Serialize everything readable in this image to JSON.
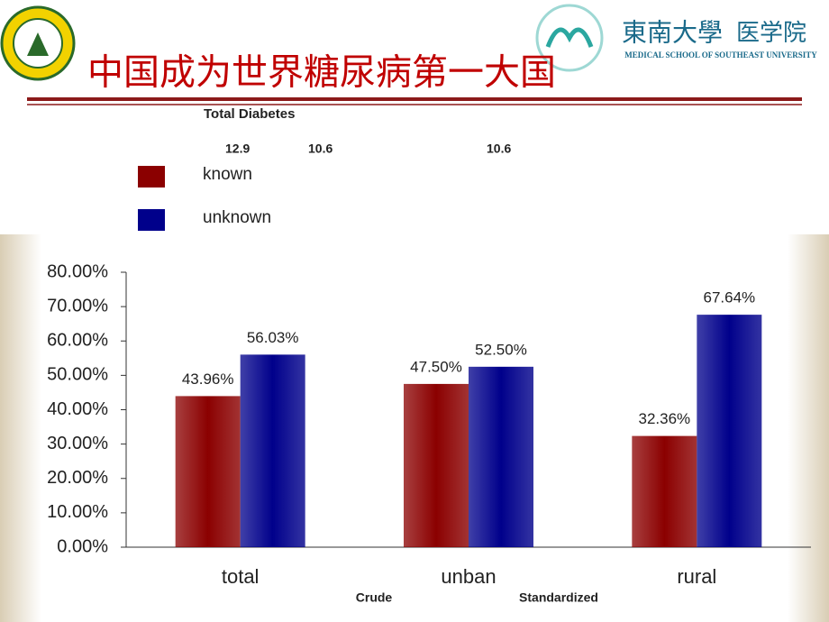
{
  "header": {
    "title": "中国成为世界糖尿病第一大国",
    "school_cn": "東南大學",
    "school_dept": "医学院",
    "school_en": "MEDICAL SCHOOL OF SOUTHEAST UNIVERSITY"
  },
  "chart_data": {
    "type": "bar",
    "title": "Total Diabetes",
    "annotations": [
      "12.9",
      "10.6",
      "10.6",
      "Crude",
      "Standardized"
    ],
    "categories": [
      "total",
      "unban",
      "rural"
    ],
    "series": [
      {
        "name": "known",
        "color": "#8b0000",
        "values": [
          43.96,
          47.5,
          32.36
        ],
        "value_labels": [
          "43.96%",
          "47.50%",
          "32.36%"
        ]
      },
      {
        "name": "unknown",
        "color": "#00008b",
        "values": [
          56.03,
          52.5,
          67.64
        ],
        "value_labels": [
          "56.03%",
          "52.50%",
          "67.64%"
        ]
      }
    ],
    "ylim": [
      0,
      80
    ],
    "yticks": [
      {
        "value": 0,
        "label": "0.00%"
      },
      {
        "value": 10,
        "label": "10.00%"
      },
      {
        "value": 20,
        "label": "20.00%"
      },
      {
        "value": 30,
        "label": "30.00%"
      },
      {
        "value": 40,
        "label": "40.00%"
      },
      {
        "value": 50,
        "label": "50.00%"
      },
      {
        "value": 60,
        "label": "60.00%"
      },
      {
        "value": 70,
        "label": "70.00%"
      },
      {
        "value": 80,
        "label": "80.00%"
      }
    ],
    "legend": "upper left"
  }
}
